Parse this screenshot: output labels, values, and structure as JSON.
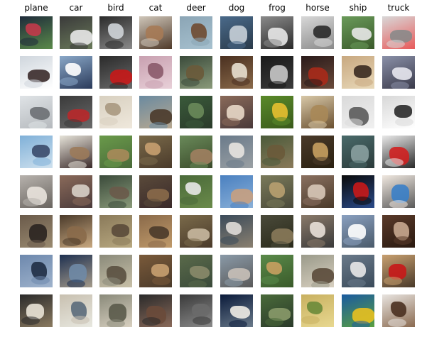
{
  "classes": [
    "plane",
    "car",
    "bird",
    "cat",
    "deer",
    "dog",
    "frog",
    "horse",
    "ship",
    "truck"
  ],
  "rows_per_class": 8,
  "thumbnails": [
    [
      [
        "#1e2a3a",
        "#c23a4a",
        "#5a8a4a"
      ],
      [
        "#cfd6dd",
        "#3a2a2a",
        "#ffffff"
      ],
      [
        "#dfe3e6",
        "#6b6f73",
        "#b5b9bd"
      ],
      [
        "#7fb0d8",
        "#3a4a6a",
        "#cfe1ee"
      ],
      [
        "#b7b2ad",
        "#e9e3dd",
        "#6a6560"
      ],
      [
        "#6a5a4a",
        "#2a2420",
        "#9a8a70"
      ],
      [
        "#6d88ad",
        "#1f2d45",
        "#9fb3cc"
      ],
      [
        "#2a2a2a",
        "#e9e3d6",
        "#8a7a60"
      ]
    ],
    [
      [
        "#3a3a3a",
        "#e8e8e8",
        "#6a7a5a"
      ],
      [
        "#8aa8c8",
        "#ffffff",
        "#2a3a5a"
      ],
      [
        "#3a3a3a",
        "#b8282a",
        "#6a6a6a"
      ],
      [
        "#e7e4da",
        "#9b7a5a",
        "#3a2a2a"
      ],
      [
        "#8a6a5a",
        "#d8d0c8",
        "#4a3a3a"
      ],
      [
        "#4a3a2a",
        "#8a6a4a",
        "#c8a880"
      ],
      [
        "#1e3050",
        "#6f8aa6",
        "#a59b8b"
      ],
      [
        "#c8c0b0",
        "#5a6a7a",
        "#e8e8e0"
      ]
    ],
    [
      [
        "#2a2a2a",
        "#cfd4d8",
        "#8a8a8a"
      ],
      [
        "#2a2a2a",
        "#c81818",
        "#6a6a6a"
      ],
      [
        "#d8d0c0",
        "#a89880",
        "#efe8dc"
      ],
      [
        "#6a9a4a",
        "#a88a5a",
        "#4a6a3a"
      ],
      [
        "#3a4a3a",
        "#6a5a4a",
        "#8a9a7a"
      ],
      [
        "#8a7a5a",
        "#5a4a3a",
        "#b8a880"
      ],
      [
        "#8a8a7a",
        "#5a5040",
        "#c8c0a8"
      ],
      [
        "#8a8a7a",
        "#5a5a4a",
        "#d8d0c0"
      ]
    ],
    [
      [
        "#cfc6b9",
        "#a67a55",
        "#4f3a2a"
      ],
      [
        "#c8a0b0",
        "#8a5a6a",
        "#e8d0d8"
      ],
      [
        "#6a8aa0",
        "#4a3a2a",
        "#b8a890"
      ],
      [
        "#7a6a4a",
        "#c8a070",
        "#4a3a2a"
      ],
      [
        "#5a4a3a",
        "#8a6a4a",
        "#3a2a2a"
      ],
      [
        "#8a6a4a",
        "#4a3a2a",
        "#c09a6a"
      ],
      [
        "#7a5a3a",
        "#c8a070",
        "#4a3a2a"
      ],
      [
        "#2a2a2a",
        "#6a4a3a",
        "#8a6a5a"
      ]
    ],
    [
      [
        "#8ba5b5",
        "#6f4a30",
        "#a7c1cf"
      ],
      [
        "#3a4a3a",
        "#6a5a3a",
        "#8a9a7a"
      ],
      [
        "#3a5a3a",
        "#6a8a5a",
        "#2a3a2a"
      ],
      [
        "#6a8a5a",
        "#a08060",
        "#3a4a2a"
      ],
      [
        "#4a6a3a",
        "#e8e8e8",
        "#6a8a4a"
      ],
      [
        "#7a6a4a",
        "#c8b8a0",
        "#4a3a2a"
      ],
      [
        "#5a6a4a",
        "#8a8a6a",
        "#3a4a3a"
      ],
      [
        "#3a3a3a",
        "#6a6a6a",
        "#8a8a8a"
      ]
    ],
    [
      [
        "#4a6a8a",
        "#c8d0d8",
        "#2a3a4a"
      ],
      [
        "#4a3020",
        "#e8e0d0",
        "#8a6a4a"
      ],
      [
        "#8a6a5a",
        "#e8d8c8",
        "#4a3a3a"
      ],
      [
        "#6a7a8a",
        "#e8e4e0",
        "#9aa0a4"
      ],
      [
        "#4a80c0",
        "#c8a080",
        "#8ab0d8"
      ],
      [
        "#3a4a5a",
        "#e0dcd8",
        "#8a8070"
      ],
      [
        "#8a9aa8",
        "#c8c0b8",
        "#5a5a5a"
      ],
      [
        "#0a1a3a",
        "#f0ece6",
        "#6a7a8a"
      ]
    ],
    [
      [
        "#8a8a8a",
        "#e8e8e8",
        "#2a2a2a"
      ],
      [
        "#1a1a1a",
        "#c8c8c8",
        "#3a3a3a"
      ],
      [
        "#5a8a2a",
        "#e8c030",
        "#3a5a1a"
      ],
      [
        "#4a5a3a",
        "#6a5a3a",
        "#8a7a5a"
      ],
      [
        "#7a7a5a",
        "#b8a070",
        "#4a4a3a"
      ],
      [
        "#4a4a3a",
        "#8a7a5a",
        "#2a2a1a"
      ],
      [
        "#5a8a4a",
        "#c8a060",
        "#3a5a2a"
      ],
      [
        "#4a6a3a",
        "#8a9a6a",
        "#2a3a2a"
      ]
    ],
    [
      [
        "#d8d8d8",
        "#2a2a2a",
        "#8a8a8a"
      ],
      [
        "#2a1a1a",
        "#a82a1a",
        "#6a4a3a"
      ],
      [
        "#d8c8a8",
        "#a88858",
        "#6a5030"
      ],
      [
        "#4a3a2a",
        "#c8a060",
        "#2a2010"
      ],
      [
        "#8a7060",
        "#d8c8b8",
        "#4a3a2a"
      ],
      [
        "#8a7a6a",
        "#e8e0d8",
        "#3a3a3a"
      ],
      [
        "#9a9a8a",
        "#5a4a3a",
        "#d8d0c0"
      ],
      [
        "#c8b060",
        "#6a8a3a",
        "#e8d890"
      ]
    ],
    [
      [
        "#6a9a5a",
        "#e8e8e8",
        "#3a5a2a"
      ],
      [
        "#c8a880",
        "#3a2a20",
        "#e8d8b8"
      ],
      [
        "#dadada",
        "#5a5a5a",
        "#f0f0f0"
      ],
      [
        "#4a6a6a",
        "#8aa0a0",
        "#2a3a3a"
      ],
      [
        "#0a0a0a",
        "#c81818",
        "#2a4a8a"
      ],
      [
        "#8aa0c0",
        "#ffffff",
        "#4a5a6a"
      ],
      [
        "#6a7a8a",
        "#e8e8e8",
        "#3a4a5a"
      ],
      [
        "#1a5aa0",
        "#e8c020",
        "#5aa040"
      ]
    ],
    [
      [
        "#d8d8d8",
        "#8a8a8a",
        "#e85a5a"
      ],
      [
        "#8a90a8",
        "#e8e8f0",
        "#3a3a4a"
      ],
      [
        "#d8d8d8",
        "#2a2a2a",
        "#ffffff"
      ],
      [
        "#eaeaea",
        "#d02020",
        "#2a2a2a"
      ],
      [
        "#f0e8e0",
        "#3a80c8",
        "#5a5a5a"
      ],
      [
        "#5a3a2a",
        "#c8a890",
        "#2a1a10"
      ],
      [
        "#c8a070",
        "#c81818",
        "#4a3a2a"
      ],
      [
        "#e8e4e0",
        "#4a3020",
        "#8a6a50"
      ]
    ]
  ]
}
